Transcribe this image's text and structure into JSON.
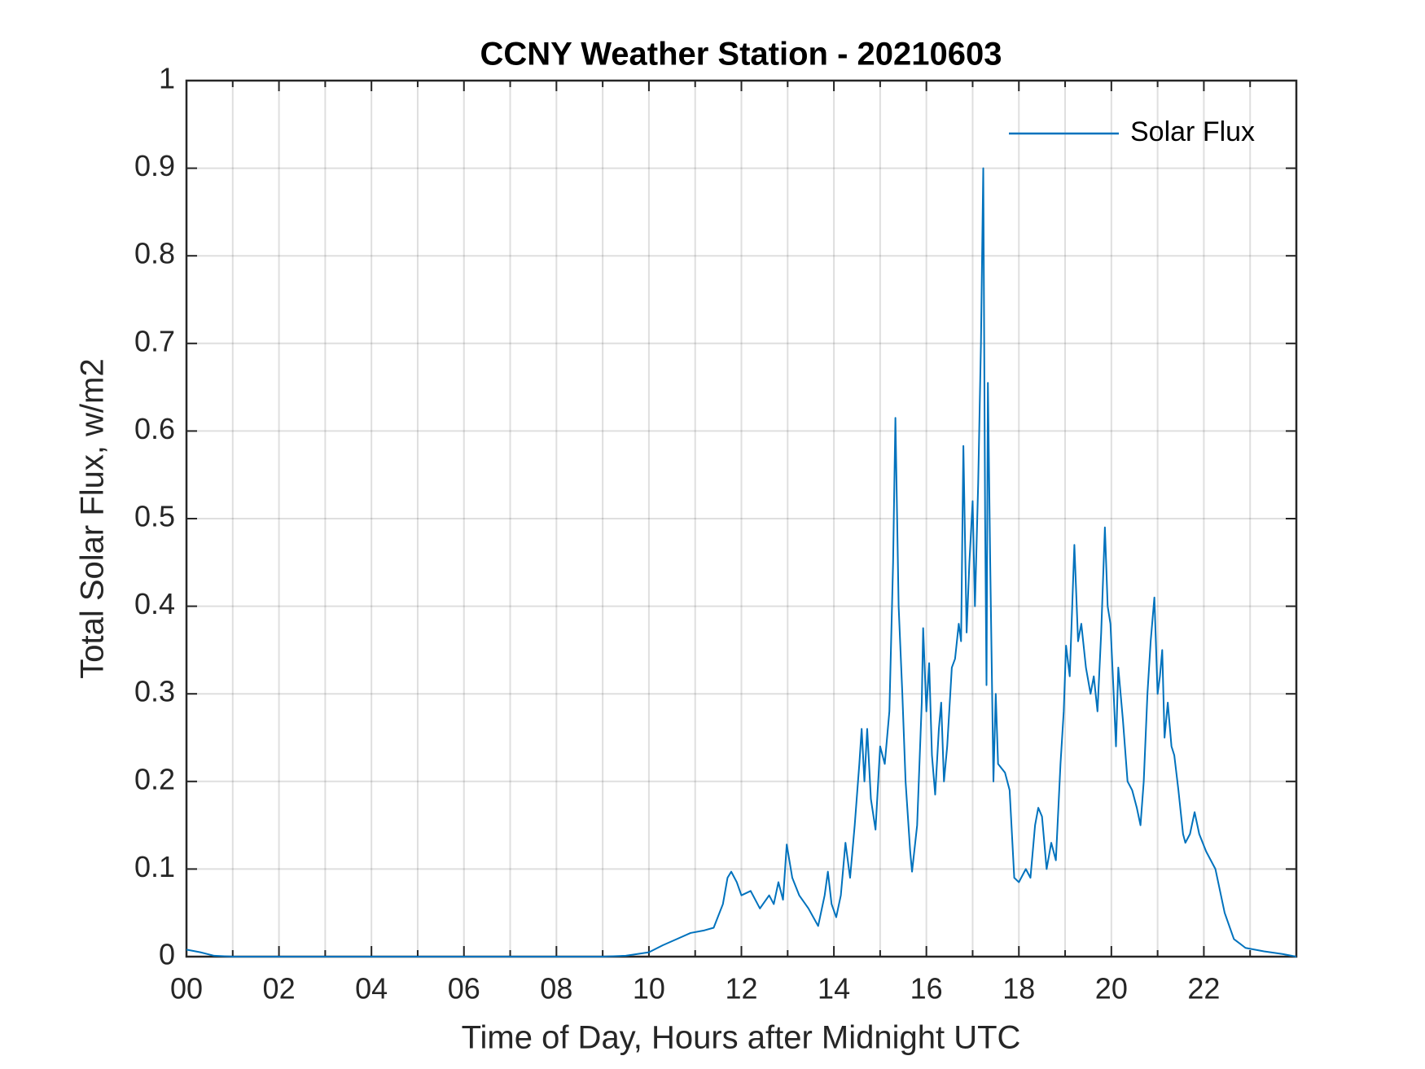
{
  "chart_data": {
    "type": "line",
    "title": "CCNY Weather Station - 20210603",
    "xlabel": "Time of Day, Hours after Midnight UTC",
    "ylabel": "Total Solar Flux, w/m2",
    "xlim": [
      0,
      24
    ],
    "ylim": [
      0,
      1
    ],
    "xticks": [
      {
        "value": 0,
        "label": "00"
      },
      {
        "value": 2,
        "label": "02"
      },
      {
        "value": 4,
        "label": "04"
      },
      {
        "value": 6,
        "label": "06"
      },
      {
        "value": 8,
        "label": "08"
      },
      {
        "value": 10,
        "label": "10"
      },
      {
        "value": 12,
        "label": "12"
      },
      {
        "value": 14,
        "label": "14"
      },
      {
        "value": 16,
        "label": "16"
      },
      {
        "value": 18,
        "label": "18"
      },
      {
        "value": 20,
        "label": "20"
      },
      {
        "value": 22,
        "label": "22"
      }
    ],
    "xminor_grid": [
      1,
      3,
      5,
      7,
      9,
      11,
      13,
      15,
      17,
      19,
      21,
      23
    ],
    "yticks": [
      0,
      0.1,
      0.2,
      0.3,
      0.4,
      0.5,
      0.6,
      0.7,
      0.8,
      0.9,
      1
    ],
    "grid": true,
    "legend": "northeast",
    "x": [
      0,
      0.3,
      0.6,
      1,
      9,
      9.5,
      10,
      10.3,
      10.6,
      10.9,
      11.2,
      11.4,
      11.6,
      11.7,
      11.78,
      11.9,
      12,
      12.2,
      12.4,
      12.6,
      12.7,
      12.8,
      12.9,
      12.98,
      13.1,
      13.25,
      13.45,
      13.66,
      13.8,
      13.87,
      13.95,
      14.05,
      14.15,
      14.25,
      14.35,
      14.45,
      14.55,
      14.6,
      14.66,
      14.72,
      14.8,
      14.9,
      15.0,
      15.1,
      15.2,
      15.28,
      15.33,
      15.4,
      15.48,
      15.55,
      15.6,
      15.65,
      15.69,
      15.8,
      15.9,
      15.93,
      16.0,
      16.06,
      16.12,
      16.19,
      16.27,
      16.32,
      16.38,
      16.45,
      16.55,
      16.62,
      16.7,
      16.75,
      16.8,
      16.87,
      16.93,
      17.0,
      17.05,
      17.12,
      17.18,
      17.23,
      17.27,
      17.3,
      17.33,
      17.38,
      17.45,
      17.5,
      17.55,
      17.7,
      17.8,
      17.9,
      18.0,
      18.15,
      18.25,
      18.35,
      18.42,
      18.5,
      18.6,
      18.7,
      18.8,
      18.9,
      18.97,
      19.02,
      19.1,
      19.2,
      19.28,
      19.35,
      19.45,
      19.55,
      19.62,
      19.7,
      19.78,
      19.86,
      19.92,
      19.98,
      20.05,
      20.1,
      20.15,
      20.25,
      20.35,
      20.45,
      20.55,
      20.63,
      20.7,
      20.78,
      20.85,
      20.93,
      21.0,
      21.05,
      21.1,
      21.15,
      21.22,
      21.3,
      21.36,
      21.45,
      21.55,
      21.6,
      21.7,
      21.8,
      21.9,
      22.05,
      22.25,
      22.45,
      22.65,
      22.9,
      23.3,
      23.7,
      24
    ],
    "series": [
      {
        "name": "Solar Flux",
        "color": "#0072bd",
        "values": [
          0.008,
          0.005,
          0.001,
          0,
          0,
          0.001,
          0.005,
          0.013,
          0.02,
          0.027,
          0.03,
          0.033,
          0.06,
          0.09,
          0.097,
          0.085,
          0.07,
          0.075,
          0.055,
          0.07,
          0.06,
          0.085,
          0.065,
          0.128,
          0.09,
          0.07,
          0.055,
          0.035,
          0.07,
          0.097,
          0.06,
          0.045,
          0.07,
          0.13,
          0.09,
          0.15,
          0.22,
          0.26,
          0.2,
          0.26,
          0.18,
          0.145,
          0.24,
          0.22,
          0.28,
          0.45,
          0.615,
          0.4,
          0.3,
          0.2,
          0.16,
          0.12,
          0.097,
          0.15,
          0.29,
          0.375,
          0.28,
          0.335,
          0.23,
          0.185,
          0.26,
          0.29,
          0.2,
          0.24,
          0.33,
          0.34,
          0.38,
          0.36,
          0.583,
          0.37,
          0.45,
          0.52,
          0.4,
          0.54,
          0.7,
          0.9,
          0.5,
          0.31,
          0.655,
          0.45,
          0.2,
          0.3,
          0.22,
          0.21,
          0.19,
          0.09,
          0.085,
          0.1,
          0.09,
          0.15,
          0.17,
          0.16,
          0.1,
          0.13,
          0.11,
          0.22,
          0.28,
          0.355,
          0.32,
          0.47,
          0.36,
          0.38,
          0.33,
          0.3,
          0.32,
          0.28,
          0.37,
          0.49,
          0.4,
          0.38,
          0.3,
          0.24,
          0.33,
          0.27,
          0.2,
          0.19,
          0.17,
          0.15,
          0.2,
          0.3,
          0.36,
          0.41,
          0.3,
          0.32,
          0.35,
          0.25,
          0.29,
          0.24,
          0.23,
          0.19,
          0.14,
          0.13,
          0.14,
          0.165,
          0.14,
          0.12,
          0.1,
          0.05,
          0.02,
          0.01,
          0.006,
          0.003,
          0
        ]
      }
    ]
  }
}
